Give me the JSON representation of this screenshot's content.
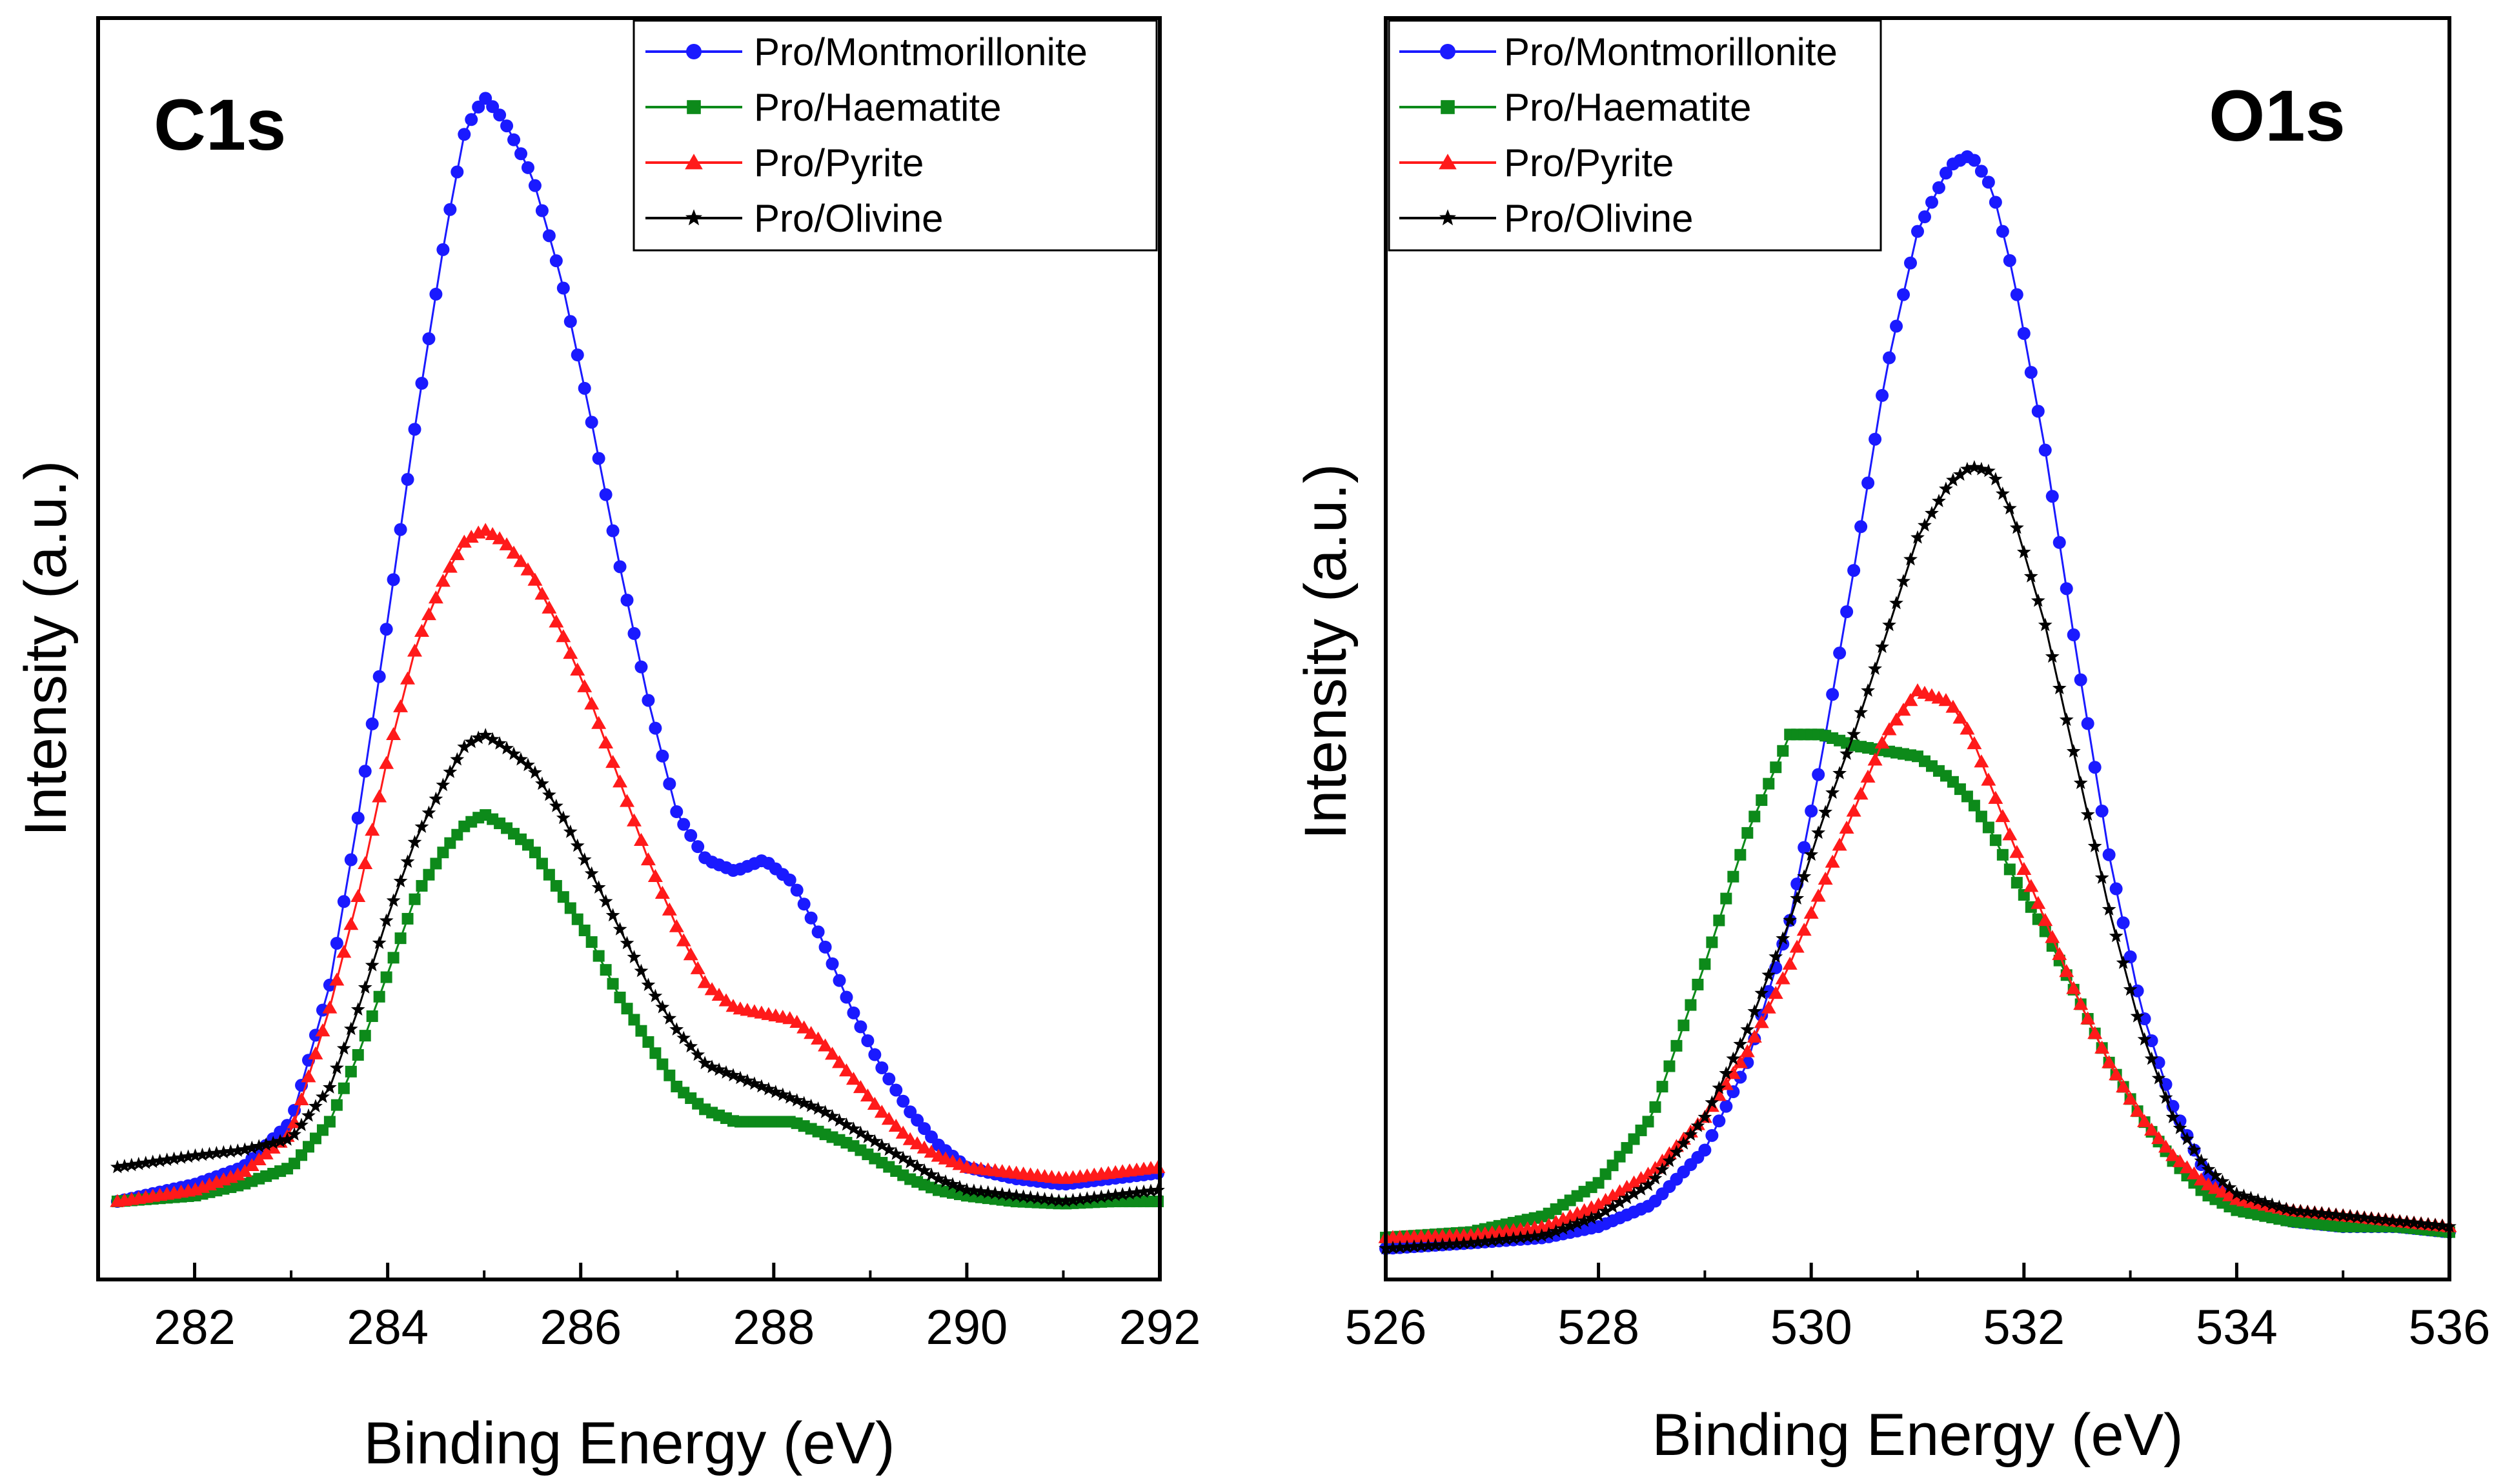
{
  "colors": {
    "Pro/Montmorillonite": "#1a1aff",
    "Pro/Haematite": "#0d8a1a",
    "Pro/Pyrite": "#ff1a1a",
    "Pro/Olivine": "#000000"
  },
  "chart_data": [
    {
      "type": "line",
      "panel_label": "C1s",
      "xlabel": "Binding Energy (eV)",
      "ylabel": "Intensity (a.u.)",
      "xlim": [
        281,
        292
      ],
      "ylim": [
        0,
        1
      ],
      "xticks": [
        282,
        284,
        286,
        288,
        290,
        292
      ],
      "y_tick_labels_shown": false,
      "legend_position": "top-right",
      "series": [
        {
          "name": "Pro/Montmorillonite",
          "marker": "circle",
          "x": [
            281.2,
            282,
            282.5,
            283,
            283.4,
            283.7,
            284,
            284.3,
            284.6,
            284.8,
            285,
            285.2,
            285.5,
            285.8,
            286.1,
            286.4,
            286.7,
            287,
            287.3,
            287.6,
            287.9,
            288.2,
            288.5,
            288.8,
            289.1,
            289.4,
            289.7,
            290,
            290.5,
            291,
            291.5,
            292
          ],
          "y": [
            0.03,
            0.045,
            0.06,
            0.1,
            0.22,
            0.37,
            0.54,
            0.72,
            0.88,
            0.97,
            1.0,
            0.98,
            0.93,
            0.84,
            0.72,
            0.59,
            0.47,
            0.37,
            0.33,
            0.32,
            0.33,
            0.31,
            0.26,
            0.2,
            0.15,
            0.11,
            0.08,
            0.06,
            0.05,
            0.045,
            0.05,
            0.055
          ]
        },
        {
          "name": "Pro/Haematite",
          "marker": "square",
          "x": [
            281.2,
            282,
            282.5,
            283,
            283.4,
            283.7,
            284,
            284.3,
            284.6,
            284.8,
            285,
            285.2,
            285.5,
            285.8,
            286.1,
            286.4,
            286.7,
            287,
            287.3,
            287.6,
            287.9,
            288.2,
            288.5,
            288.8,
            289.1,
            289.4,
            289.7,
            290,
            290.5,
            291,
            291.5,
            292
          ],
          "y": [
            0.03,
            0.035,
            0.045,
            0.06,
            0.1,
            0.16,
            0.23,
            0.3,
            0.34,
            0.36,
            0.37,
            0.36,
            0.34,
            0.3,
            0.26,
            0.21,
            0.17,
            0.13,
            0.11,
            0.1,
            0.1,
            0.1,
            0.09,
            0.08,
            0.065,
            0.05,
            0.04,
            0.035,
            0.03,
            0.028,
            0.03,
            0.03
          ]
        },
        {
          "name": "Pro/Pyrite",
          "marker": "triangle",
          "x": [
            281.2,
            282,
            282.5,
            283,
            283.4,
            283.7,
            284,
            284.3,
            284.6,
            284.8,
            285,
            285.2,
            285.5,
            285.8,
            286.1,
            286.4,
            286.7,
            287,
            287.3,
            287.6,
            287.9,
            288.2,
            288.5,
            288.8,
            289.1,
            289.4,
            289.7,
            290,
            290.5,
            291,
            291.5,
            292
          ],
          "y": [
            0.03,
            0.04,
            0.055,
            0.09,
            0.2,
            0.3,
            0.42,
            0.52,
            0.58,
            0.61,
            0.62,
            0.61,
            0.58,
            0.53,
            0.47,
            0.4,
            0.33,
            0.27,
            0.22,
            0.2,
            0.195,
            0.19,
            0.17,
            0.14,
            0.11,
            0.085,
            0.07,
            0.06,
            0.055,
            0.05,
            0.055,
            0.06
          ]
        },
        {
          "name": "Pro/Olivine",
          "marker": "star",
          "x": [
            281.2,
            282,
            282.5,
            283,
            283.4,
            283.7,
            284,
            284.3,
            284.6,
            284.8,
            285,
            285.2,
            285.5,
            285.8,
            286.1,
            286.4,
            286.7,
            287,
            287.3,
            287.6,
            287.9,
            288.2,
            288.5,
            288.8,
            289.1,
            289.4,
            289.7,
            290,
            290.5,
            291,
            291.5,
            292
          ],
          "y": [
            0.06,
            0.07,
            0.075,
            0.085,
            0.13,
            0.2,
            0.28,
            0.35,
            0.4,
            0.43,
            0.44,
            0.43,
            0.41,
            0.37,
            0.32,
            0.27,
            0.22,
            0.18,
            0.15,
            0.14,
            0.13,
            0.12,
            0.11,
            0.095,
            0.08,
            0.065,
            0.05,
            0.04,
            0.035,
            0.03,
            0.035,
            0.04
          ]
        }
      ]
    },
    {
      "type": "line",
      "panel_label": "O1s",
      "xlabel": "Binding Energy (eV)",
      "ylabel": "Intensity (a.u.)",
      "xlim": [
        526,
        536
      ],
      "ylim": [
        0,
        1
      ],
      "xticks": [
        526,
        528,
        530,
        532,
        534,
        536
      ],
      "y_tick_labels_shown": false,
      "legend_position": "top-left",
      "series": [
        {
          "name": "Pro/Montmorillonite",
          "marker": "circle",
          "x": [
            526,
            526.8,
            527.5,
            528,
            528.5,
            529,
            529.4,
            529.8,
            530.1,
            530.4,
            530.7,
            531,
            531.3,
            531.5,
            531.7,
            531.9,
            532.2,
            532.5,
            532.8,
            533.1,
            533.4,
            533.7,
            534,
            534.5,
            535,
            535.5,
            536
          ],
          "y": [
            0.0,
            0.005,
            0.01,
            0.02,
            0.04,
            0.09,
            0.17,
            0.3,
            0.45,
            0.62,
            0.8,
            0.93,
            0.99,
            1.0,
            0.97,
            0.89,
            0.73,
            0.54,
            0.36,
            0.22,
            0.13,
            0.07,
            0.04,
            0.025,
            0.02,
            0.02,
            0.015
          ]
        },
        {
          "name": "Pro/Haematite",
          "marker": "square",
          "x": [
            526,
            526.8,
            527.5,
            528,
            528.5,
            529,
            529.4,
            529.8,
            530.1,
            530.4,
            530.7,
            531,
            531.3,
            531.5,
            531.7,
            531.9,
            532.2,
            532.5,
            532.8,
            533.1,
            533.4,
            533.7,
            534,
            534.5,
            535,
            535.5,
            536
          ],
          "y": [
            0.01,
            0.015,
            0.03,
            0.06,
            0.12,
            0.26,
            0.38,
            0.47,
            0.47,
            0.46,
            0.455,
            0.45,
            0.43,
            0.41,
            0.38,
            0.34,
            0.29,
            0.23,
            0.17,
            0.12,
            0.08,
            0.05,
            0.035,
            0.025,
            0.02,
            0.02,
            0.015
          ]
        },
        {
          "name": "Pro/Pyrite",
          "marker": "triangle",
          "x": [
            526,
            526.8,
            527.5,
            528,
            528.5,
            529,
            529.4,
            529.8,
            530.1,
            530.4,
            530.7,
            531,
            531.3,
            531.5,
            531.7,
            531.9,
            532.2,
            532.5,
            532.8,
            533.1,
            533.4,
            533.7,
            534,
            534.5,
            535,
            535.5,
            536
          ],
          "y": [
            0.01,
            0.012,
            0.02,
            0.04,
            0.07,
            0.12,
            0.18,
            0.26,
            0.33,
            0.4,
            0.47,
            0.51,
            0.5,
            0.47,
            0.42,
            0.37,
            0.3,
            0.23,
            0.17,
            0.12,
            0.085,
            0.06,
            0.045,
            0.035,
            0.03,
            0.025,
            0.02
          ]
        },
        {
          "name": "Pro/Olivine",
          "marker": "star",
          "x": [
            526,
            526.8,
            527.5,
            528,
            528.5,
            529,
            529.4,
            529.8,
            530.1,
            530.4,
            530.7,
            531,
            531.3,
            531.5,
            531.7,
            531.9,
            532.2,
            532.5,
            532.8,
            533.1,
            533.4,
            533.7,
            534,
            534.5,
            535,
            535.5,
            536
          ],
          "y": [
            0.0,
            0.005,
            0.012,
            0.03,
            0.06,
            0.12,
            0.2,
            0.3,
            0.39,
            0.47,
            0.56,
            0.65,
            0.7,
            0.715,
            0.71,
            0.67,
            0.57,
            0.44,
            0.31,
            0.2,
            0.12,
            0.075,
            0.05,
            0.035,
            0.03,
            0.025,
            0.02
          ]
        }
      ]
    }
  ]
}
